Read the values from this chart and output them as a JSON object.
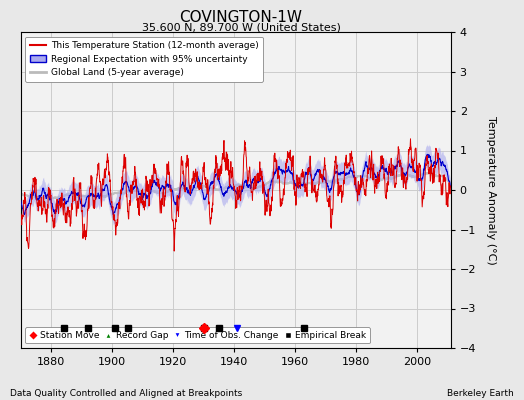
{
  "title": "COVINGTON-1W",
  "subtitle": "35.600 N, 89.700 W (United States)",
  "ylabel": "Temperature Anomaly (°C)",
  "xlabel_note": "Data Quality Controlled and Aligned at Breakpoints",
  "credit": "Berkeley Earth",
  "ylim": [
    -4,
    4
  ],
  "xlim": [
    1870,
    2011
  ],
  "yticks": [
    -4,
    -3,
    -2,
    -1,
    0,
    1,
    2,
    3,
    4
  ],
  "xticks": [
    1880,
    1900,
    1920,
    1940,
    1960,
    1980,
    2000
  ],
  "bg_color": "#e8e8e8",
  "plot_bg_color": "#f2f2f2",
  "station_line_color": "#dd0000",
  "regional_line_color": "#0000cc",
  "regional_fill_color": "#aaaaee",
  "global_line_color": "#bbbbbb",
  "seed": 12,
  "start_year": 1870,
  "end_year": 2010,
  "station_move_years": [
    1930
  ],
  "record_gap_years": [],
  "obs_change_years": [
    1941
  ],
  "empirical_break_years": [
    1884,
    1892,
    1901,
    1905,
    1930,
    1935,
    1963
  ]
}
